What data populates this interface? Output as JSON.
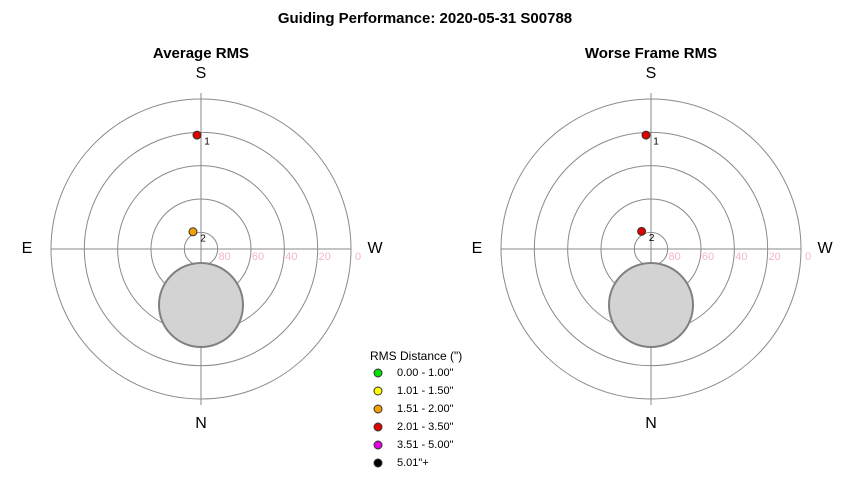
{
  "title": "Guiding Performance: 2020-05-31 S00788",
  "chart_data": [
    {
      "type": "polar",
      "title": "Average RMS",
      "directions": {
        "top": "S",
        "right": "W",
        "bottom": "N",
        "left": "E"
      },
      "rlim": [
        90,
        0
      ],
      "rticks": [
        80,
        60,
        40,
        20,
        0
      ],
      "points": [
        {
          "label": "1",
          "alt": 21.6,
          "az": 178,
          "color": "#e00000"
        },
        {
          "label": "2",
          "alt": 78.6,
          "az": 155,
          "color": "#f0a000"
        }
      ]
    },
    {
      "type": "polar",
      "title": "Worse Frame RMS",
      "directions": {
        "top": "S",
        "right": "W",
        "bottom": "N",
        "left": "E"
      },
      "rlim": [
        90,
        0
      ],
      "rticks": [
        80,
        60,
        40,
        20,
        0
      ],
      "points": [
        {
          "label": "1",
          "alt": 21.6,
          "az": 177.5,
          "color": "#e00000"
        },
        {
          "label": "2",
          "alt": 78,
          "az": 152,
          "color": "#e00000"
        }
      ]
    }
  ],
  "legend": {
    "title": "RMS Distance (\")",
    "items": [
      {
        "label": "0.00 - 1.00\"",
        "color": "#00e000"
      },
      {
        "label": "1.01 - 1.50\"",
        "color": "#ffff00"
      },
      {
        "label": "1.51 - 2.00\"",
        "color": "#f0a000"
      },
      {
        "label": "2.01 - 3.50\"",
        "color": "#e00000"
      },
      {
        "label": "3.51 - 5.00\"",
        "color": "#e000e0"
      },
      {
        "label": "5.01\"+",
        "color": "#000000"
      }
    ]
  }
}
